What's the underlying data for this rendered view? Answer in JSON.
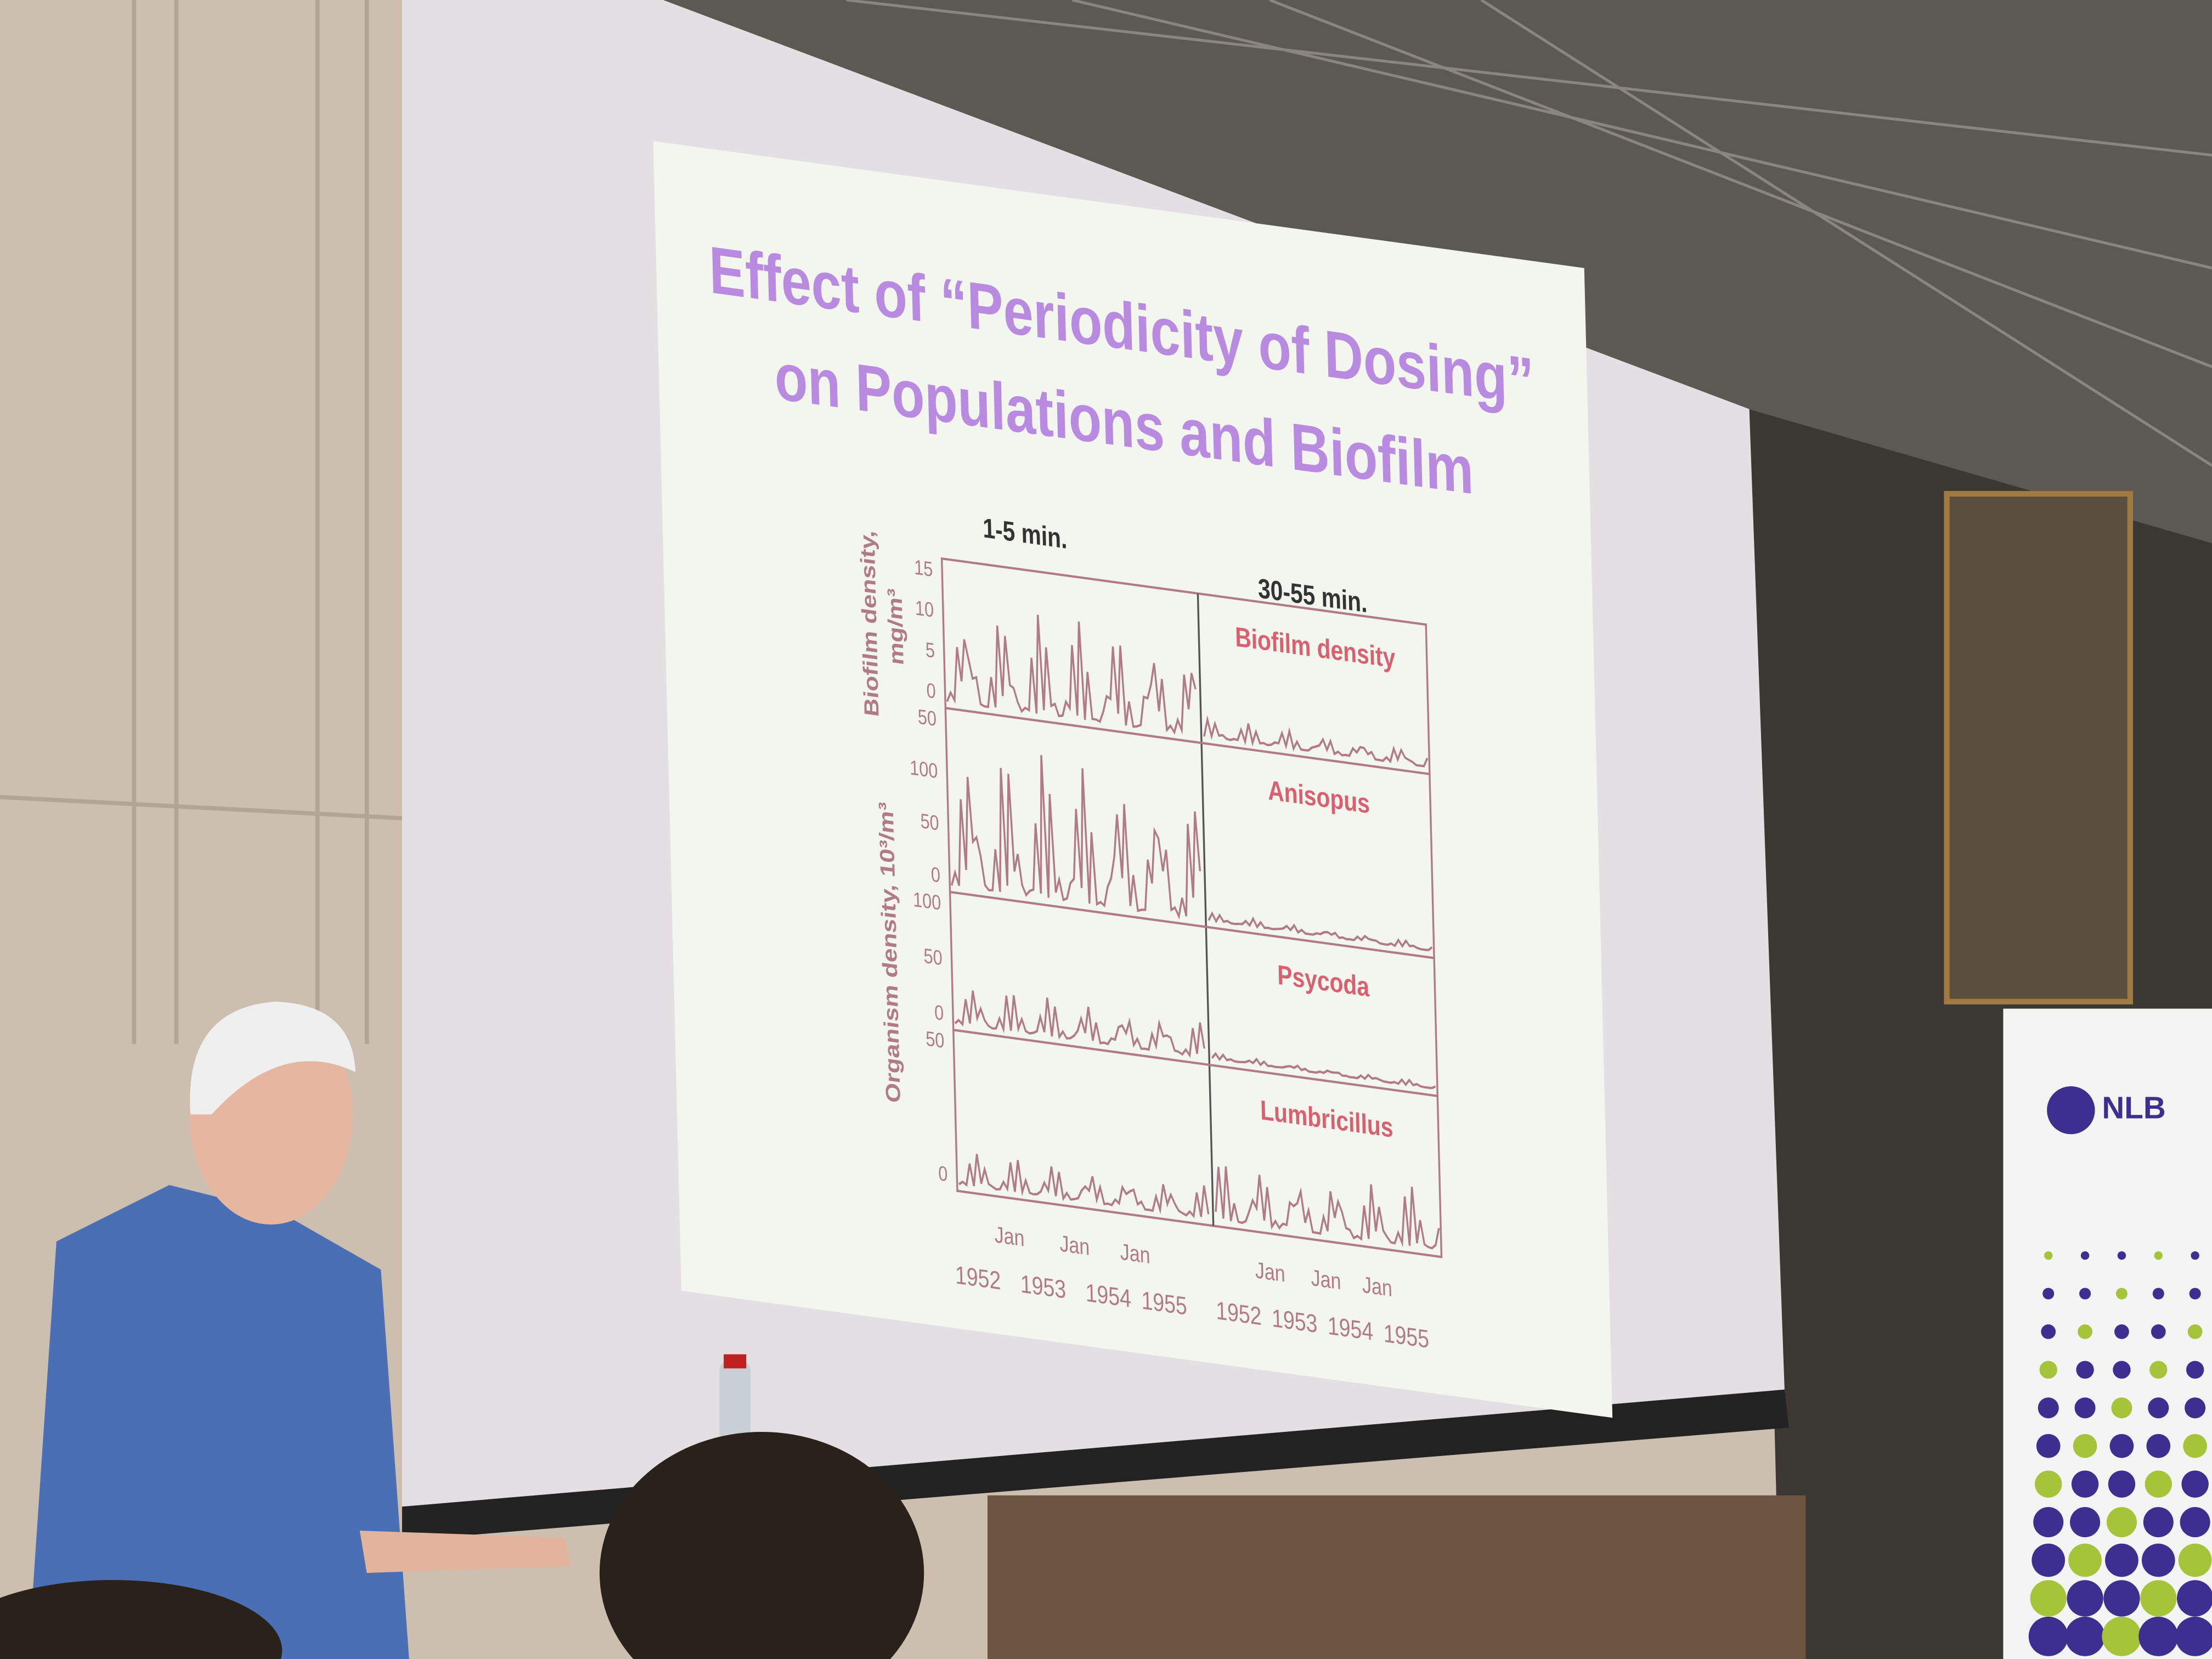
{
  "slide": {
    "title": [
      "Effect of “Periodicity of Dosing”",
      "on Populations and Biofilm"
    ],
    "column_labels": [
      "1-5 min.",
      "30-55 min."
    ],
    "y_axis_labels": {
      "biofilm": [
        "Biofilm density,",
        "mg/m³"
      ],
      "organism": "Organism density, 10³/m³"
    },
    "panels": [
      {
        "label": "Biofilm density",
        "ticks": [
          "15",
          "10",
          "5",
          "0"
        ]
      },
      {
        "label": "Anisopus",
        "ticks": [
          "50",
          "100",
          "50",
          "0"
        ]
      },
      {
        "label": "Psycoda",
        "ticks": [
          "100",
          "50",
          "0"
        ]
      },
      {
        "label": "Lumbricillus",
        "ticks": [
          "50",
          "0"
        ]
      }
    ],
    "x_axis": {
      "months": [
        "Jan",
        "Jan",
        "Jan",
        "Jan",
        "Jan",
        "Jan"
      ],
      "years": [
        "1952",
        "1953",
        "1954",
        "1955",
        "1952",
        "1953",
        "1954",
        "1955"
      ]
    }
  },
  "banner": {
    "text": "NLB"
  }
}
